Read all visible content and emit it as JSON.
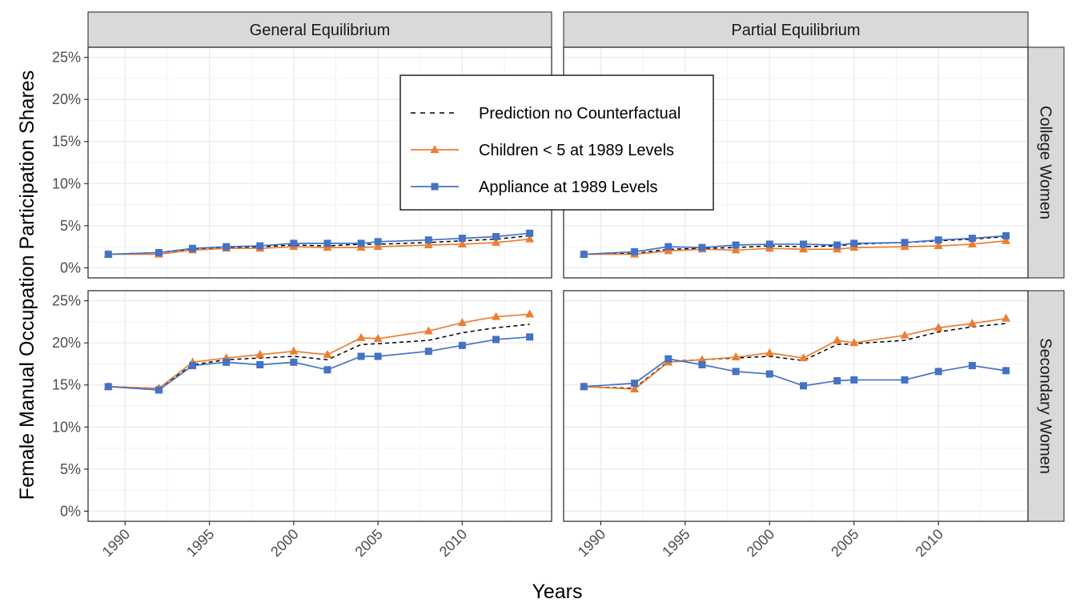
{
  "chart_data": {
    "type": "line",
    "xlabel": "Years",
    "ylabel": "Female Manual Occupation Participation Shares",
    "xlim": [
      1987.8,
      2015.3
    ],
    "ylim": [
      -0.012,
      0.262
    ],
    "x_ticks": [
      1990,
      1995,
      2000,
      2005,
      2010
    ],
    "x_tick_labels": [
      "1990",
      "1995",
      "2000",
      "2005",
      "2010"
    ],
    "y_ticks": [
      0,
      0.05,
      0.1,
      0.15,
      0.2,
      0.25
    ],
    "y_tick_labels": [
      "0%",
      "5%",
      "10%",
      "15%",
      "20%",
      "25%"
    ],
    "grid": true,
    "column_facets": [
      "General Equilibrium",
      "Partial Equilibrium"
    ],
    "row_facets": [
      "College Women",
      "Secondary Women"
    ],
    "legend": {
      "placement": "inside-top-center",
      "entries": [
        {
          "name": "Prediction no Counterfactual",
          "color": "#000000",
          "style": "dashed",
          "marker": "none"
        },
        {
          "name": "Children < 5 at 1989 Levels",
          "color": "#ED7D31",
          "style": "solid",
          "marker": "triangle"
        },
        {
          "name": "Appliance at 1989 Levels",
          "color": "#4472C4",
          "style": "solid",
          "marker": "square"
        }
      ]
    },
    "panels": [
      {
        "row": "College Women",
        "column": "General Equilibrium",
        "series": [
          {
            "name": "Prediction no Counterfactual",
            "x": [
              1989,
              1992,
              1994,
              1996,
              1998,
              2000,
              2002,
              2004,
              2005,
              2008,
              2010,
              2012,
              2014
            ],
            "y": [
              0.016,
              0.018,
              0.022,
              0.024,
              0.025,
              0.027,
              0.026,
              0.028,
              0.028,
              0.03,
              0.032,
              0.034,
              0.038
            ]
          },
          {
            "name": "Children < 5 at 1989 Levels",
            "x": [
              1989,
              1992,
              1994,
              1996,
              1998,
              2000,
              2002,
              2004,
              2005,
              2008,
              2010,
              2012,
              2014
            ],
            "y": [
              0.016,
              0.016,
              0.021,
              0.023,
              0.023,
              0.025,
              0.024,
              0.024,
              0.025,
              0.027,
              0.028,
              0.03,
              0.034
            ]
          },
          {
            "name": "Appliance at 1989 Levels",
            "x": [
              1989,
              1992,
              1994,
              1996,
              1998,
              2000,
              2002,
              2004,
              2005,
              2008,
              2010,
              2012,
              2014
            ],
            "y": [
              0.016,
              0.018,
              0.023,
              0.025,
              0.026,
              0.029,
              0.029,
              0.029,
              0.031,
              0.033,
              0.035,
              0.037,
              0.041
            ]
          }
        ]
      },
      {
        "row": "College Women",
        "column": "Partial Equilibrium",
        "series": [
          {
            "name": "Prediction no Counterfactual",
            "x": [
              1989,
              1992,
              1994,
              1996,
              1998,
              2000,
              2002,
              2004,
              2005,
              2008,
              2010,
              2012,
              2014
            ],
            "y": [
              0.016,
              0.017,
              0.022,
              0.023,
              0.024,
              0.026,
              0.025,
              0.026,
              0.028,
              0.03,
              0.032,
              0.034,
              0.037
            ]
          },
          {
            "name": "Children < 5 at 1989 Levels",
            "x": [
              1989,
              1992,
              1994,
              1996,
              1998,
              2000,
              2002,
              2004,
              2005,
              2008,
              2010,
              2012,
              2014
            ],
            "y": [
              0.016,
              0.016,
              0.02,
              0.022,
              0.021,
              0.023,
              0.022,
              0.022,
              0.024,
              0.025,
              0.026,
              0.028,
              0.032
            ]
          },
          {
            "name": "Appliance at 1989 Levels",
            "x": [
              1989,
              1992,
              1994,
              1996,
              1998,
              2000,
              2002,
              2004,
              2005,
              2008,
              2010,
              2012,
              2014
            ],
            "y": [
              0.016,
              0.019,
              0.025,
              0.024,
              0.027,
              0.028,
              0.028,
              0.027,
              0.029,
              0.03,
              0.033,
              0.035,
              0.038
            ]
          }
        ]
      },
      {
        "row": "Secondary Women",
        "column": "General Equilibrium",
        "series": [
          {
            "name": "Prediction no Counterfactual",
            "x": [
              1989,
              1992,
              1994,
              1996,
              1998,
              2000,
              2002,
              2004,
              2005,
              2008,
              2010,
              2012,
              2014
            ],
            "y": [
              0.148,
              0.146,
              0.174,
              0.18,
              0.182,
              0.184,
              0.18,
              0.198,
              0.199,
              0.203,
              0.212,
              0.218,
              0.222
            ]
          },
          {
            "name": "Children < 5 at 1989 Levels",
            "x": [
              1989,
              1992,
              1994,
              1996,
              1998,
              2000,
              2002,
              2004,
              2005,
              2008,
              2010,
              2012,
              2014
            ],
            "y": [
              0.148,
              0.146,
              0.177,
              0.182,
              0.186,
              0.19,
              0.186,
              0.206,
              0.205,
              0.214,
              0.224,
              0.231,
              0.234
            ]
          },
          {
            "name": "Appliance at 1989 Levels",
            "x": [
              1989,
              1992,
              1994,
              1996,
              1998,
              2000,
              2002,
              2004,
              2005,
              2008,
              2010,
              2012,
              2014
            ],
            "y": [
              0.148,
              0.144,
              0.173,
              0.177,
              0.174,
              0.177,
              0.168,
              0.184,
              0.184,
              0.19,
              0.197,
              0.204,
              0.207
            ]
          }
        ]
      },
      {
        "row": "Secondary Women",
        "column": "Partial Equilibrium",
        "series": [
          {
            "name": "Prediction no Counterfactual",
            "x": [
              1989,
              1992,
              1994,
              1996,
              1998,
              2000,
              2002,
              2004,
              2005,
              2008,
              2010,
              2012,
              2014
            ],
            "y": [
              0.148,
              0.146,
              0.178,
              0.18,
              0.182,
              0.184,
              0.179,
              0.198,
              0.199,
              0.203,
              0.213,
              0.219,
              0.223
            ]
          },
          {
            "name": "Children < 5 at 1989 Levels",
            "x": [
              1989,
              1992,
              1994,
              1996,
              1998,
              2000,
              2002,
              2004,
              2005,
              2008,
              2010,
              2012,
              2014
            ],
            "y": [
              0.148,
              0.145,
              0.177,
              0.18,
              0.183,
              0.188,
              0.182,
              0.203,
              0.2,
              0.209,
              0.218,
              0.223,
              0.229
            ]
          },
          {
            "name": "Appliance at 1989 Levels",
            "x": [
              1989,
              1992,
              1994,
              1996,
              1998,
              2000,
              2002,
              2004,
              2005,
              2008,
              2010,
              2012,
              2014
            ],
            "y": [
              0.148,
              0.152,
              0.181,
              0.174,
              0.166,
              0.163,
              0.149,
              0.155,
              0.156,
              0.156,
              0.166,
              0.173,
              0.167
            ]
          }
        ]
      }
    ]
  }
}
